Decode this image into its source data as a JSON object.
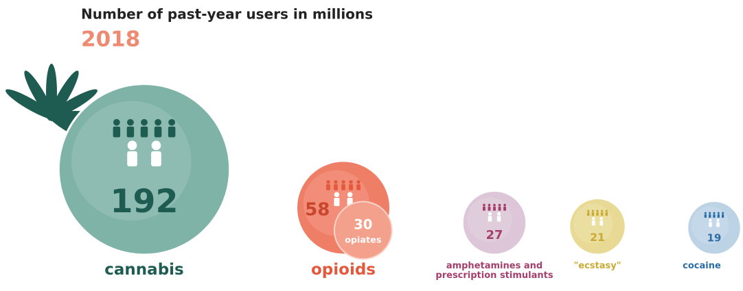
{
  "chart_data": {
    "type": "bubble",
    "title": "Number of past-year users in millions",
    "subtitle": "2018",
    "categories": [
      "cannabis",
      "opioids",
      "amphetamines and prescription stimulants",
      "\"ecstasy\"",
      "cocaine"
    ],
    "values": [
      192,
      58,
      27,
      21,
      19
    ],
    "colors": [
      "#7fb3a8",
      "#ef7e66",
      "#dcc6d8",
      "#e8da95",
      "#bcd3e6"
    ],
    "label_colors": [
      "#1e5c52",
      "#e4583c",
      "#a43f6c",
      "#c9aa33",
      "#2d6da6"
    ],
    "subsets": [
      null,
      {
        "name": "opiates",
        "value": 30
      },
      null,
      null,
      null
    ]
  }
}
